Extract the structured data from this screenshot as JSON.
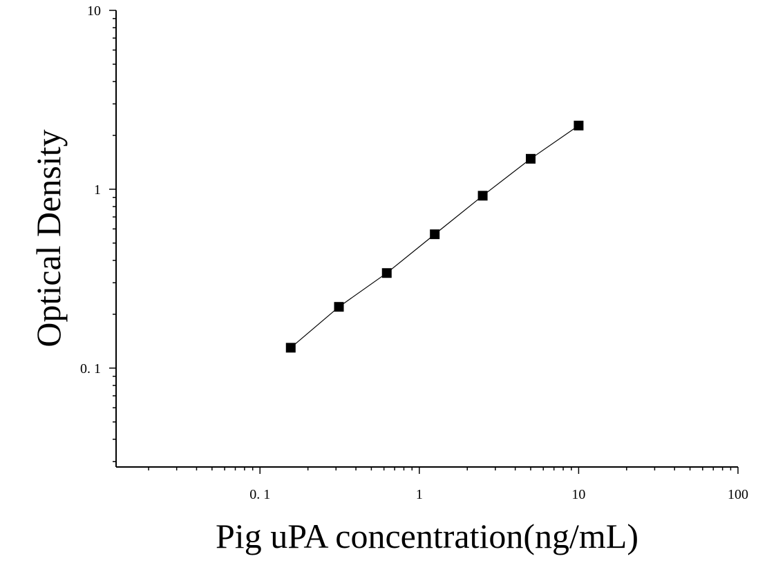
{
  "chart_data": {
    "type": "scatter",
    "xlabel": "Pig uPA concentration(ng/mL)",
    "ylabel": "Optical Density",
    "x_scale": "log",
    "y_scale": "log",
    "xlim": [
      0.0125,
      100
    ],
    "ylim": [
      0.028,
      10
    ],
    "x_ticks": [
      {
        "value": 0.1,
        "label": "0. 1"
      },
      {
        "value": 1,
        "label": "1"
      },
      {
        "value": 10,
        "label": "10"
      },
      {
        "value": 100,
        "label": "100"
      }
    ],
    "y_ticks": [
      {
        "value": 0.1,
        "label": "0. 1"
      },
      {
        "value": 1,
        "label": "1"
      },
      {
        "value": 10,
        "label": "10"
      }
    ],
    "grid": false,
    "legend": "none",
    "marker": "square",
    "series": [
      {
        "x": [
          0.156,
          0.313,
          0.625,
          1.25,
          2.5,
          5,
          10
        ],
        "y": [
          0.13,
          0.22,
          0.34,
          0.56,
          0.92,
          1.48,
          2.27
        ],
        "color": "#000000",
        "fit_line": true
      }
    ]
  }
}
